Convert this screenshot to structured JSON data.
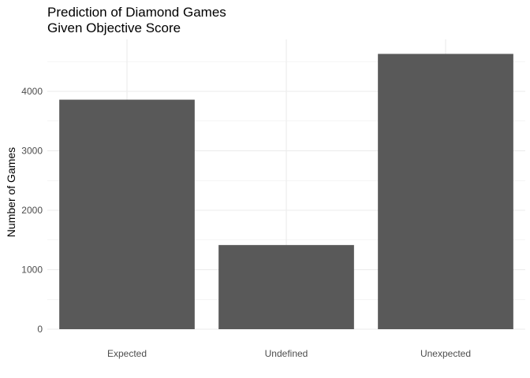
{
  "chart_data": {
    "type": "bar",
    "title": "Prediction of Diamond Games\nGiven Objective Score",
    "xlabel": "",
    "ylabel": "Number of Games",
    "categories": [
      "Expected",
      "Undefined",
      "Unexpected"
    ],
    "values": [
      3860,
      1415,
      4630
    ],
    "yticks": [
      0,
      1000,
      2000,
      3000,
      4000
    ],
    "ylim": [
      0,
      4700
    ],
    "grid": true,
    "legend": "none",
    "bar_color": "#595959",
    "grid_color": "#ebebeb"
  }
}
